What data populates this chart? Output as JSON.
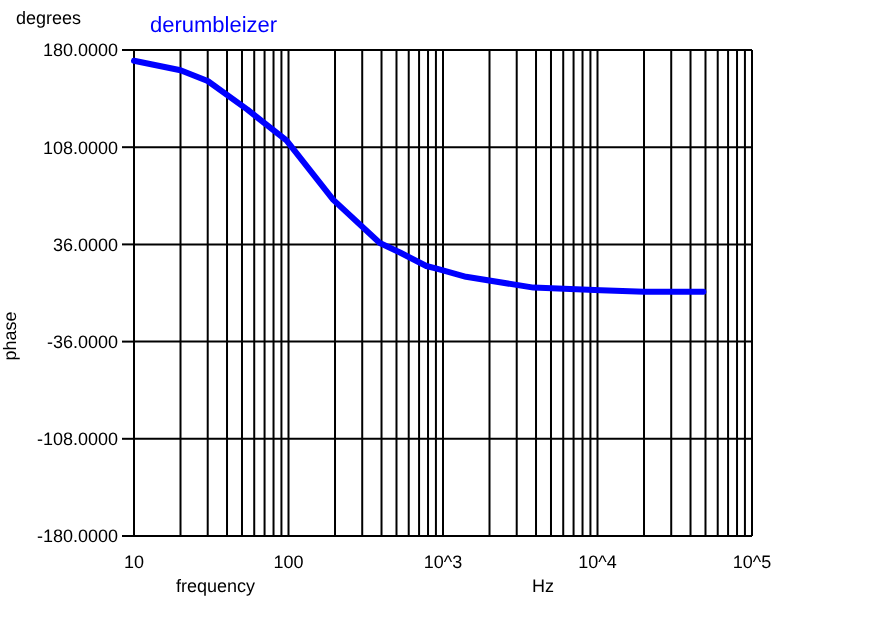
{
  "chart_data": {
    "type": "line",
    "ylabel": "phase",
    "xlabel": "frequency",
    "annotations": [
      "degrees",
      "Hz"
    ],
    "log": "x",
    "grid": true,
    "marker": "none",
    "line_style": "solid",
    "xlim": [
      10,
      100000
    ],
    "ylim": [
      -180,
      180
    ],
    "xticks": [
      {
        "value": 10,
        "label": "10"
      },
      {
        "value": 20,
        "label": null
      },
      {
        "value": 30,
        "label": null
      },
      {
        "value": 40,
        "label": null
      },
      {
        "value": 50,
        "label": null
      },
      {
        "value": 60,
        "label": null
      },
      {
        "value": 70,
        "label": null
      },
      {
        "value": 80,
        "label": null
      },
      {
        "value": 90,
        "label": null
      },
      {
        "value": 100,
        "label": "100"
      },
      {
        "value": 200,
        "label": null
      },
      {
        "value": 300,
        "label": null
      },
      {
        "value": 400,
        "label": null
      },
      {
        "value": 500,
        "label": null
      },
      {
        "value": 600,
        "label": null
      },
      {
        "value": 700,
        "label": null
      },
      {
        "value": 800,
        "label": null
      },
      {
        "value": 900,
        "label": null
      },
      {
        "value": 1000,
        "label": "10^3"
      },
      {
        "value": 2000,
        "label": null
      },
      {
        "value": 3000,
        "label": null
      },
      {
        "value": 4000,
        "label": null
      },
      {
        "value": 5000,
        "label": null
      },
      {
        "value": 6000,
        "label": null
      },
      {
        "value": 7000,
        "label": null
      },
      {
        "value": 8000,
        "label": null
      },
      {
        "value": 9000,
        "label": null
      },
      {
        "value": 10000,
        "label": "10^4"
      },
      {
        "value": 20000,
        "label": null
      },
      {
        "value": 30000,
        "label": null
      },
      {
        "value": 40000,
        "label": null
      },
      {
        "value": 50000,
        "label": null
      },
      {
        "value": 60000,
        "label": null
      },
      {
        "value": 70000,
        "label": null
      },
      {
        "value": 80000,
        "label": null
      },
      {
        "value": 90000,
        "label": null
      },
      {
        "value": 100000,
        "label": "10^5"
      }
    ],
    "yticks": [
      {
        "value": -180,
        "label": "-180.0000"
      },
      {
        "value": -108,
        "label": "-108.0000"
      },
      {
        "value": -36,
        "label": "-36.0000"
      },
      {
        "value": 36,
        "label": "36.0000"
      },
      {
        "value": 108,
        "label": "108.0000"
      },
      {
        "value": 180,
        "label": "180.0000"
      }
    ],
    "series": [
      {
        "name": "derumbleizer",
        "color": "#0000ff",
        "x": [
          10,
          20,
          30,
          54,
          97,
          195,
          390,
          527,
          780,
          910,
          1410,
          3850,
          10500,
          20000,
          48500
        ],
        "values": [
          172,
          165,
          157,
          136,
          113,
          69,
          37,
          30,
          20,
          18,
          12,
          4,
          2,
          1,
          1
        ]
      }
    ]
  }
}
